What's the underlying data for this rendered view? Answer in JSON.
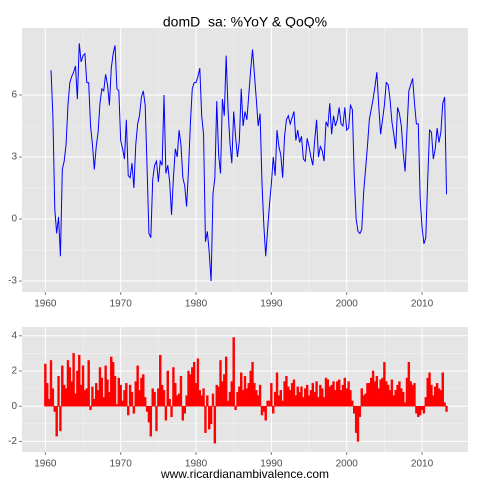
{
  "caption": "www.ricardianambivalence.com",
  "chart_data": [
    {
      "type": "line",
      "title": "domD_sa: %YoY & QoQ%",
      "color": "#0000ff",
      "grid": true,
      "minor_grid": true,
      "xlim": [
        1956.9,
        2016.1
      ],
      "ylim": [
        -3.53,
        9.24
      ],
      "xticks": [
        1960,
        1970,
        1980,
        1990,
        2000,
        2010
      ],
      "yticks": [
        -3,
        0,
        3,
        6
      ],
      "x": [
        1960.75,
        1961,
        1961.25,
        1961.5,
        1961.75,
        1962,
        1962.25,
        1962.5,
        1962.75,
        1963,
        1963.25,
        1963.5,
        1963.75,
        1964,
        1964.25,
        1964.5,
        1964.75,
        1965,
        1965.25,
        1965.5,
        1965.75,
        1966,
        1966.25,
        1966.5,
        1966.75,
        1967,
        1967.25,
        1967.5,
        1967.75,
        1968,
        1968.25,
        1968.5,
        1968.75,
        1969,
        1969.25,
        1969.5,
        1969.75,
        1970,
        1970.25,
        1970.5,
        1970.75,
        1971,
        1971.25,
        1971.5,
        1971.75,
        1972,
        1972.25,
        1972.5,
        1972.75,
        1973,
        1973.25,
        1973.5,
        1973.75,
        1974,
        1974.25,
        1974.5,
        1974.75,
        1975,
        1975.25,
        1975.5,
        1975.75,
        1976,
        1976.25,
        1976.5,
        1976.75,
        1977,
        1977.25,
        1977.5,
        1977.75,
        1978,
        1978.25,
        1978.5,
        1978.75,
        1979,
        1979.25,
        1979.5,
        1979.75,
        1980,
        1980.25,
        1980.5,
        1980.75,
        1981,
        1981.25,
        1981.5,
        1981.75,
        1982,
        1982.25,
        1982.5,
        1982.75,
        1983,
        1983.25,
        1983.5,
        1983.75,
        1984,
        1984.25,
        1984.5,
        1984.75,
        1985,
        1985.25,
        1985.5,
        1985.75,
        1986,
        1986.25,
        1986.5,
        1986.75,
        1987,
        1987.25,
        1987.5,
        1987.75,
        1988,
        1988.25,
        1988.5,
        1988.75,
        1989,
        1989.25,
        1989.5,
        1989.75,
        1990,
        1990.25,
        1990.5,
        1990.75,
        1991,
        1991.25,
        1991.5,
        1991.75,
        1992,
        1992.25,
        1992.5,
        1992.75,
        1993,
        1993.25,
        1993.5,
        1993.75,
        1994,
        1994.25,
        1994.5,
        1994.75,
        1995,
        1995.25,
        1995.5,
        1995.75,
        1996,
        1996.25,
        1996.5,
        1996.75,
        1997,
        1997.25,
        1997.5,
        1997.75,
        1998,
        1998.25,
        1998.5,
        1998.75,
        1999,
        1999.25,
        1999.5,
        1999.75,
        2000,
        2000.25,
        2000.5,
        2000.75,
        2001,
        2001.25,
        2001.5,
        2001.75,
        2002,
        2002.25,
        2002.5,
        2002.75,
        2003,
        2003.25,
        2003.5,
        2003.75,
        2004,
        2004.25,
        2004.5,
        2004.75,
        2005,
        2005.25,
        2005.5,
        2005.75,
        2006,
        2006.25,
        2006.5,
        2006.75,
        2007,
        2007.25,
        2007.5,
        2007.75,
        2008,
        2008.25,
        2008.5,
        2008.75,
        2009,
        2009.25,
        2009.5,
        2009.75,
        2010,
        2010.25,
        2010.5,
        2010.75,
        2011,
        2011.25,
        2011.5,
        2011.75,
        2012,
        2012.25,
        2012.5,
        2012.75,
        2013,
        2013.25
      ],
      "values": [
        7.2,
        5.0,
        0.5,
        -0.7,
        0.1,
        -1.8,
        2.4,
        2.8,
        3.6,
        5.5,
        6.6,
        6.9,
        7.1,
        7.4,
        5.8,
        8.5,
        7.6,
        7.9,
        8.0,
        6.6,
        6.6,
        4.5,
        3.6,
        2.4,
        3.5,
        4.2,
        5.6,
        6.3,
        6.2,
        7.0,
        6.5,
        5.5,
        7.3,
        8.0,
        8.4,
        6.3,
        6.2,
        3.8,
        3.4,
        2.9,
        4.8,
        2.1,
        2.0,
        2.7,
        1.5,
        3.6,
        4.6,
        5.0,
        5.9,
        6.2,
        5.5,
        2.5,
        -0.7,
        -0.9,
        1.9,
        2.6,
        2.8,
        1.8,
        2.8,
        2.6,
        6.0,
        2.2,
        2.6,
        1.8,
        0.2,
        2.0,
        3.4,
        3.0,
        4.3,
        3.6,
        2.0,
        1.6,
        0.6,
        2.4,
        4.6,
        6.3,
        6.6,
        6.6,
        6.9,
        7.3,
        5.0,
        4.1,
        -1.1,
        -0.6,
        -1.6,
        -3.0,
        1.2,
        2.0,
        5.7,
        3.1,
        2.2,
        5.8,
        5.0,
        7.9,
        5.3,
        3.7,
        2.7,
        5.2,
        4.0,
        3.0,
        3.8,
        6.3,
        4.5,
        5.2,
        4.8,
        6.0,
        7.2,
        8.2,
        7.0,
        5.8,
        4.5,
        5.1,
        1.8,
        -0.3,
        -1.8,
        -0.5,
        0.7,
        1.7,
        3.0,
        2.1,
        4.3,
        3.5,
        3.1,
        2.0,
        4.0,
        4.8,
        5.0,
        4.6,
        4.9,
        5.2,
        3.8,
        4.3,
        3.7,
        4.0,
        2.9,
        2.8,
        3.9,
        3.5,
        3.0,
        2.6,
        3.8,
        4.8,
        3.0,
        3.5,
        3.3,
        2.8,
        4.7,
        4.5,
        5.6,
        4.1,
        5.0,
        4.5,
        4.8,
        5.4,
        4.6,
        4.5,
        5.4,
        4.3,
        4.4,
        5.5,
        5.3,
        2.1,
        0.0,
        -0.6,
        -0.7,
        -0.5,
        1.3,
        2.4,
        3.5,
        4.8,
        5.3,
        5.8,
        6.4,
        7.1,
        5.5,
        4.1,
        4.8,
        5.5,
        6.6,
        6.5,
        5.8,
        4.7,
        4.1,
        3.4,
        5.4,
        5.1,
        4.5,
        3.2,
        2.3,
        4.3,
        6.2,
        6.5,
        6.8,
        5.6,
        4.6,
        4.6,
        1.0,
        -0.4,
        -1.2,
        -0.9,
        1.9,
        4.3,
        4.2,
        2.9,
        3.4,
        4.4,
        3.7,
        4.2,
        5.6,
        5.9,
        1.2
      ]
    },
    {
      "type": "bar",
      "color": "#ff0000",
      "grid": true,
      "minor_grid": true,
      "xlim": [
        1956.9,
        2016.1
      ],
      "ylim": [
        -2.6,
        4.5
      ],
      "xticks": [
        1960,
        1970,
        1980,
        1990,
        2000,
        2010
      ],
      "yticks": [
        -2,
        0,
        2,
        4
      ],
      "x": [
        1960,
        1960.25,
        1960.5,
        1960.75,
        1961,
        1961.25,
        1961.5,
        1961.75,
        1962,
        1962.25,
        1962.5,
        1962.75,
        1963,
        1963.25,
        1963.5,
        1963.75,
        1964,
        1964.25,
        1964.5,
        1964.75,
        1965,
        1965.25,
        1965.5,
        1965.75,
        1966,
        1966.25,
        1966.5,
        1966.75,
        1967,
        1967.25,
        1967.5,
        1967.75,
        1968,
        1968.25,
        1968.5,
        1968.75,
        1969,
        1969.25,
        1969.5,
        1969.75,
        1970,
        1970.25,
        1970.5,
        1970.75,
        1971,
        1971.25,
        1971.5,
        1971.75,
        1972,
        1972.25,
        1972.5,
        1972.75,
        1973,
        1973.25,
        1973.5,
        1973.75,
        1974,
        1974.25,
        1974.5,
        1974.75,
        1975,
        1975.25,
        1975.5,
        1975.75,
        1976,
        1976.25,
        1976.5,
        1976.75,
        1977,
        1977.25,
        1977.5,
        1977.75,
        1978,
        1978.25,
        1978.5,
        1978.75,
        1979,
        1979.25,
        1979.5,
        1979.75,
        1980,
        1980.25,
        1980.5,
        1980.75,
        1981,
        1981.25,
        1981.5,
        1981.75,
        1982,
        1982.25,
        1982.5,
        1982.75,
        1983,
        1983.25,
        1983.5,
        1983.75,
        1984,
        1984.25,
        1984.5,
        1984.75,
        1985,
        1985.25,
        1985.5,
        1985.75,
        1986,
        1986.25,
        1986.5,
        1986.75,
        1987,
        1987.25,
        1987.5,
        1987.75,
        1988,
        1988.25,
        1988.5,
        1988.75,
        1989,
        1989.25,
        1989.5,
        1989.75,
        1990,
        1990.25,
        1990.5,
        1990.75,
        1991,
        1991.25,
        1991.5,
        1991.75,
        1992,
        1992.25,
        1992.5,
        1992.75,
        1993,
        1993.25,
        1993.5,
        1993.75,
        1994,
        1994.25,
        1994.5,
        1994.75,
        1995,
        1995.25,
        1995.5,
        1995.75,
        1996,
        1996.25,
        1996.5,
        1996.75,
        1997,
        1997.25,
        1997.5,
        1997.75,
        1998,
        1998.25,
        1998.5,
        1998.75,
        1999,
        1999.25,
        1999.5,
        1999.75,
        2000,
        2000.25,
        2000.5,
        2000.75,
        2001,
        2001.25,
        2001.5,
        2001.75,
        2002,
        2002.25,
        2002.5,
        2002.75,
        2003,
        2003.25,
        2003.5,
        2003.75,
        2004,
        2004.25,
        2004.5,
        2004.75,
        2005,
        2005.25,
        2005.5,
        2005.75,
        2006,
        2006.25,
        2006.5,
        2006.75,
        2007,
        2007.25,
        2007.5,
        2007.75,
        2008,
        2008.25,
        2008.5,
        2008.75,
        2009,
        2009.25,
        2009.5,
        2009.75,
        2010,
        2010.25,
        2010.5,
        2010.75,
        2011,
        2011.25,
        2011.5,
        2011.75,
        2012,
        2012.25,
        2012.5,
        2012.75,
        2013,
        2013.25
      ],
      "values": [
        2.4,
        1.3,
        0.4,
        2.6,
        1.0,
        -0.3,
        -1.7,
        1.7,
        -1.4,
        2.3,
        1.2,
        1.0,
        2.6,
        2.2,
        1.4,
        3.0,
        0.7,
        2.0,
        2.9,
        1.2,
        2.3,
        0.9,
        1.0,
        2.6,
        -0.2,
        1.1,
        0.4,
        1.3,
        0.9,
        2.2,
        1.6,
        0.5,
        2.3,
        1.5,
        0.8,
        2.8,
        2.5,
        1.7,
        0.1,
        1.6,
        1.2,
        0.3,
        0.9,
        1.3,
        -0.5,
        1.2,
        0.8,
        -0.4,
        1.4,
        2.3,
        0.9,
        1.6,
        1.8,
        0.5,
        -0.3,
        -0.9,
        -1.7,
        1.0,
        0.8,
        -1.4,
        1.0,
        2.9,
        1.2,
        0.9,
        -0.8,
        2.0,
        0.4,
        -0.6,
        2.2,
        1.3,
        0.6,
        0.7,
        1.7,
        -0.8,
        -0.4,
        0.6,
        2.0,
        1.8,
        2.2,
        2.5,
        1.3,
        2.7,
        0.9,
        0.6,
        1.0,
        -1.5,
        0.6,
        -1.3,
        -1.0,
        0.7,
        -2.1,
        1.2,
        1.1,
        2.6,
        1.4,
        1.8,
        2.8,
        0.3,
        0.8,
        1.4,
        3.9,
        -0.2,
        0.8,
        1.1,
        1.9,
        0.9,
        1.7,
        1.0,
        1.3,
        2.0,
        2.5,
        1.3,
        0.9,
        0.6,
        1.2,
        -0.5,
        -0.3,
        -0.8,
        0.3,
        0.3,
        1.3,
        -0.4,
        0.8,
        1.9,
        0.6,
        0.9,
        0.3,
        1.4,
        1.7,
        1.1,
        0.9,
        1.3,
        1.5,
        0.6,
        1.1,
        0.8,
        1.1,
        0.5,
        1.0,
        1.2,
        0.6,
        0.9,
        1.3,
        0.8,
        1.4,
        0.5,
        1.2,
        1.0,
        0.5,
        1.6,
        1.5,
        1.1,
        1.2,
        1.4,
        0.9,
        1.4,
        1.5,
        0.9,
        1.2,
        1.6,
        1.0,
        1.4,
        0.9,
        0.3,
        -0.4,
        -1.5,
        -2.0,
        -0.6,
        1.0,
        0.6,
        0.7,
        1.3,
        1.3,
        1.6,
        2.0,
        1.4,
        1.7,
        1.0,
        1.5,
        1.6,
        2.5,
        1.4,
        1.2,
        0.9,
        1.5,
        0.6,
        0.9,
        1.2,
        1.4,
        1.0,
        0.8,
        0.2,
        1.6,
        2.5,
        1.4,
        1.2,
        1.3,
        -0.4,
        -0.6,
        -0.5,
        -0.2,
        -0.4,
        0.5,
        1.6,
        1.9,
        1.2,
        0.6,
        1.1,
        1.3,
        1.0,
        0.9,
        1.9,
        0.2,
        -0.3
      ]
    }
  ]
}
